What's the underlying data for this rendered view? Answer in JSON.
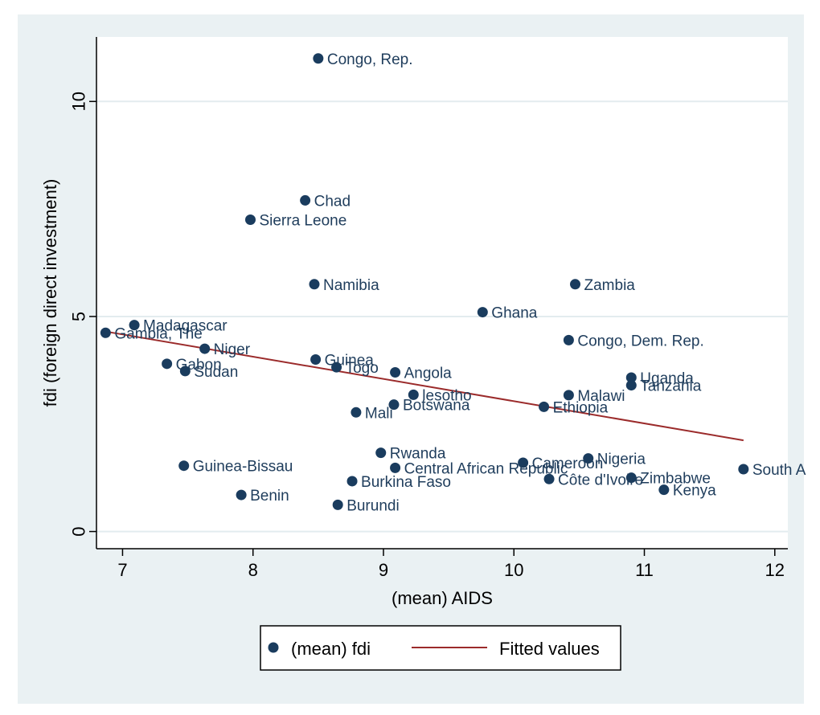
{
  "chart_data": {
    "type": "scatter",
    "xlabel": "(mean) AIDS",
    "ylabel": "fdi (foreign direct investment)",
    "xlim": [
      6.8,
      12.1
    ],
    "ylim": [
      -0.4,
      11.5
    ],
    "xticks": [
      7,
      8,
      9,
      10,
      11,
      12
    ],
    "yticks": [
      0,
      5,
      10
    ],
    "grid": "horizontal",
    "legend_position": "bottom",
    "colors": {
      "outer_background": "#eaf1f3",
      "plot_background": "#ffffff",
      "grid": "#e3ecef",
      "marker": "#1a3c5e",
      "label": "#1f3d5c",
      "fit_line": "#9b2b2b"
    },
    "series": [
      {
        "name": "(mean) fdi",
        "kind": "scatter",
        "points": [
          {
            "x": 8.5,
            "y": 11.0,
            "label": "Congo, Rep."
          },
          {
            "x": 8.4,
            "y": 7.7,
            "label": "Chad"
          },
          {
            "x": 7.98,
            "y": 7.25,
            "label": "Sierra Leone"
          },
          {
            "x": 8.47,
            "y": 5.75,
            "label": "Namibia"
          },
          {
            "x": 10.47,
            "y": 5.75,
            "label": "Zambia"
          },
          {
            "x": 9.76,
            "y": 5.1,
            "label": "Ghana"
          },
          {
            "x": 7.09,
            "y": 4.8,
            "label": "Madagascar"
          },
          {
            "x": 6.87,
            "y": 4.62,
            "label": "Gambia, The"
          },
          {
            "x": 10.42,
            "y": 4.45,
            "label": "Congo, Dem. Rep."
          },
          {
            "x": 7.63,
            "y": 4.25,
            "label": "Niger"
          },
          {
            "x": 8.48,
            "y": 4.0,
            "label": "Guinea"
          },
          {
            "x": 7.34,
            "y": 3.9,
            "label": "Gabon"
          },
          {
            "x": 8.64,
            "y": 3.82,
            "label": "Togo"
          },
          {
            "x": 7.48,
            "y": 3.73,
            "label": "Sudan"
          },
          {
            "x": 9.09,
            "y": 3.7,
            "label": "Angola"
          },
          {
            "x": 10.9,
            "y": 3.58,
            "label": "Uganda"
          },
          {
            "x": 10.9,
            "y": 3.4,
            "label": "Tanzania"
          },
          {
            "x": 9.23,
            "y": 3.18,
            "label": "lesotho"
          },
          {
            "x": 10.42,
            "y": 3.17,
            "label": "Malawi"
          },
          {
            "x": 9.08,
            "y": 2.95,
            "label": "Botswana"
          },
          {
            "x": 10.23,
            "y": 2.9,
            "label": "Ethiopia"
          },
          {
            "x": 8.79,
            "y": 2.77,
            "label": "Mali"
          },
          {
            "x": 8.98,
            "y": 1.83,
            "label": "Rwanda"
          },
          {
            "x": 10.57,
            "y": 1.7,
            "label": "Nigeria"
          },
          {
            "x": 10.07,
            "y": 1.6,
            "label": "Cameroon"
          },
          {
            "x": 7.47,
            "y": 1.53,
            "label": "Guinea-Bissau"
          },
          {
            "x": 9.09,
            "y": 1.48,
            "label": "Central African Republic"
          },
          {
            "x": 11.76,
            "y": 1.45,
            "label": "South A"
          },
          {
            "x": 10.9,
            "y": 1.25,
            "label": "Zimbabwe"
          },
          {
            "x": 10.27,
            "y": 1.22,
            "label": "Côte d'Ivoire"
          },
          {
            "x": 8.76,
            "y": 1.17,
            "label": "Burkina Faso"
          },
          {
            "x": 11.15,
            "y": 0.97,
            "label": "Kenya"
          },
          {
            "x": 7.91,
            "y": 0.85,
            "label": "Benin"
          },
          {
            "x": 8.65,
            "y": 0.62,
            "label": "Burundi"
          }
        ]
      },
      {
        "name": "Fitted values",
        "kind": "line",
        "points": [
          {
            "x": 6.87,
            "y": 4.65
          },
          {
            "x": 11.76,
            "y": 2.12
          }
        ]
      }
    ]
  }
}
